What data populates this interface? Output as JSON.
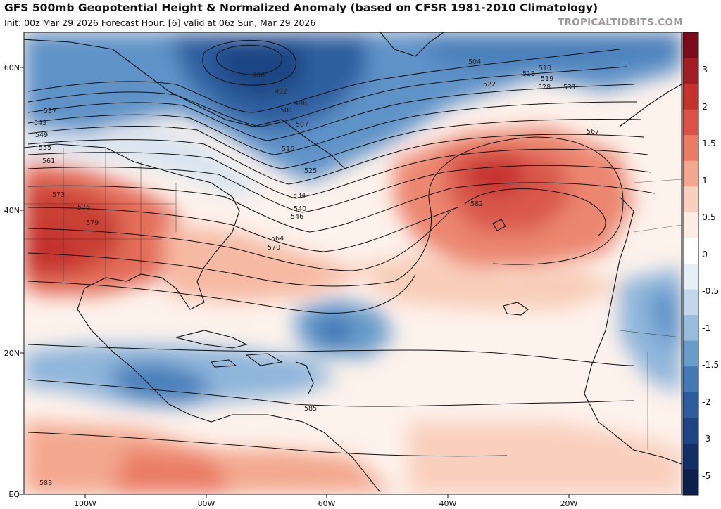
{
  "header": {
    "title": "GFS 500mb Geopotential Height & Normalized Anomaly (based on CFSR 1981-2010 Climatology)",
    "subtitle": "Init: 00z Mar 29 2026   Forecast Hour: [6]   valid at 06z Sun, Mar 29 2026",
    "brand": "TROPICALTIDBITS.COM"
  },
  "axes": {
    "lat_labels": [
      "60N",
      "40N",
      "20N",
      "EQ"
    ],
    "lon_labels": [
      "100W",
      "80W",
      "60W",
      "40W",
      "20W"
    ]
  },
  "colorbar": {
    "labels": [
      "3",
      "2",
      "1.5",
      "1",
      "0.5",
      "0",
      "-0.5",
      "-1",
      "-1.5",
      "-2",
      "-3",
      "-5"
    ],
    "colors": [
      "#7a0c1c",
      "#a01d26",
      "#c4322d",
      "#d9534a",
      "#ea7c66",
      "#f3a78e",
      "#f9cfbe",
      "#fdece3",
      "#ffffff",
      "#e6eef6",
      "#c3d6ea",
      "#98bcdc",
      "#6a9ccb",
      "#4479b6",
      "#2d5c9e",
      "#1f4483",
      "#142f66",
      "#0c1f4d"
    ]
  },
  "contours": {
    "labels": [
      "486",
      "492",
      "498",
      "501",
      "504",
      "507",
      "510",
      "513",
      "516",
      "519",
      "522",
      "525",
      "528",
      "531",
      "534",
      "537",
      "540",
      "543",
      "546",
      "549",
      "555",
      "561",
      "564",
      "567",
      "570",
      "573",
      "576",
      "579",
      "582",
      "585",
      "588"
    ]
  }
}
